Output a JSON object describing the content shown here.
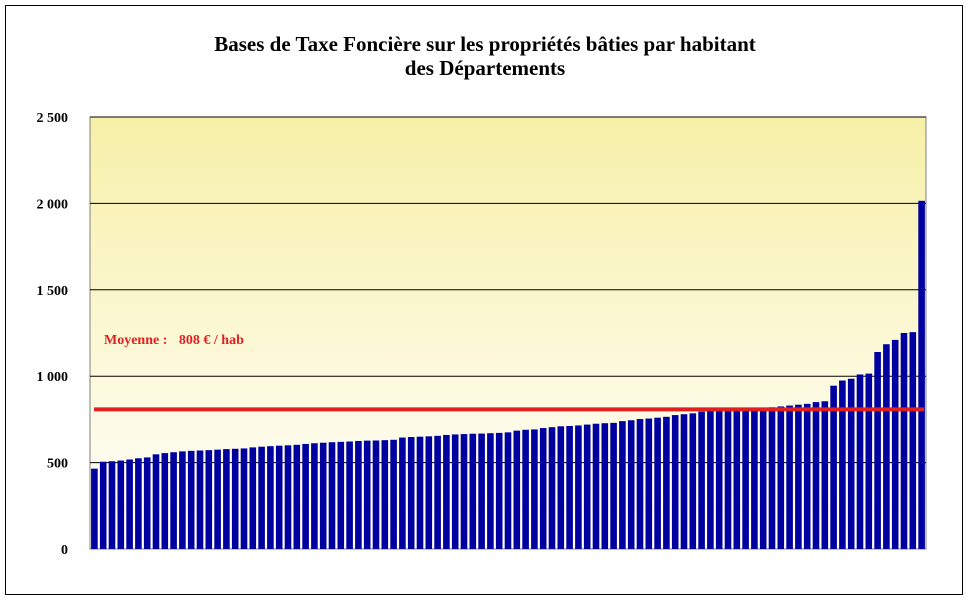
{
  "chart_data": {
    "type": "bar",
    "title_line1": "Bases de Taxe Foncière sur les propriétés bâties par habitant",
    "title_line2": "des Départements",
    "xlabel": "",
    "ylabel": "",
    "ylim": [
      0,
      2500
    ],
    "yticks": [
      0,
      500,
      1000,
      1500,
      2000,
      2500
    ],
    "ytick_labels": [
      "0",
      "500",
      "1 000",
      "1 500",
      "2 000",
      "2 500"
    ],
    "grid": true,
    "average": {
      "value": 808,
      "label": "Moyenne :",
      "value_label": "808 € / hab"
    },
    "colors": {
      "bar": "#0000a0",
      "average_line": "#e02020",
      "plot_top": "#f7f0a8",
      "plot_bottom": "#ffffff"
    },
    "values": [
      465,
      505,
      508,
      512,
      518,
      525,
      530,
      548,
      555,
      560,
      565,
      568,
      570,
      572,
      575,
      578,
      580,
      582,
      588,
      592,
      595,
      598,
      600,
      603,
      608,
      612,
      615,
      618,
      620,
      622,
      625,
      627,
      628,
      630,
      632,
      645,
      648,
      650,
      652,
      655,
      660,
      663,
      665,
      667,
      668,
      670,
      672,
      675,
      685,
      690,
      692,
      700,
      705,
      710,
      712,
      715,
      720,
      725,
      728,
      730,
      740,
      745,
      752,
      755,
      760,
      765,
      775,
      780,
      785,
      795,
      800,
      802,
      805,
      808,
      810,
      812,
      815,
      820,
      825,
      830,
      835,
      840,
      850,
      855,
      945,
      975,
      985,
      1010,
      1015,
      1140,
      1185,
      1210,
      1250,
      1255,
      2015
    ]
  }
}
